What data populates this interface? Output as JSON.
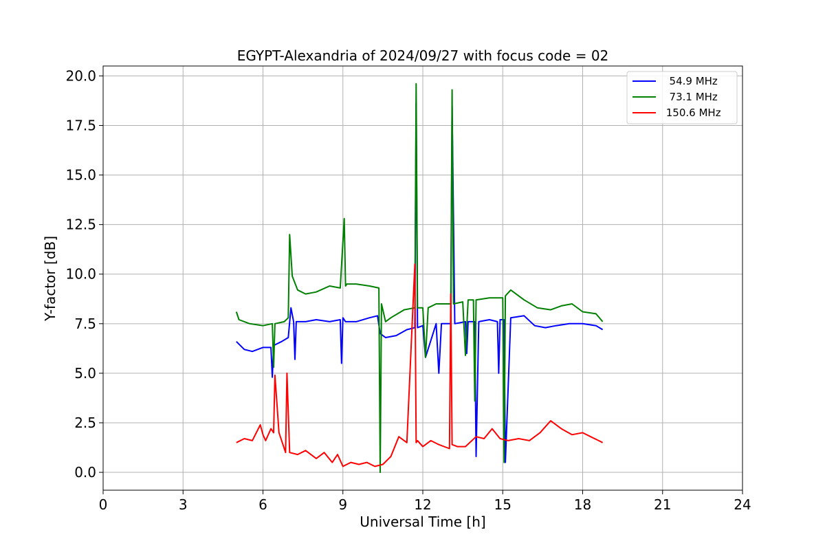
{
  "chart_data": {
    "type": "line",
    "title": "EGYPT-Alexandria of 2024/09/27 with focus code = 02",
    "xlabel": "Universal Time [h]",
    "ylabel": "Y-factor [dB]",
    "xlim": [
      0,
      24
    ],
    "ylim": [
      -0.9,
      20.5
    ],
    "x_ticks": [
      0,
      3,
      6,
      9,
      12,
      15,
      18,
      21,
      24
    ],
    "x_tick_labels": [
      "0",
      "3",
      "6",
      "9",
      "12",
      "15",
      "18",
      "21",
      "24"
    ],
    "y_ticks": [
      0.0,
      2.5,
      5.0,
      7.5,
      10.0,
      12.5,
      15.0,
      17.5,
      20.0
    ],
    "y_tick_labels": [
      "0.0",
      "2.5",
      "5.0",
      "7.5",
      "10.0",
      "12.5",
      "15.0",
      "17.5",
      "20.0"
    ],
    "grid": true,
    "legend_position": "top-right",
    "series": [
      {
        "name": "  54.9 MHz",
        "color": "#0000ff",
        "x": [
          5.0,
          5.3,
          5.6,
          6.0,
          6.3,
          6.35,
          6.4,
          6.7,
          6.95,
          7.05,
          7.15,
          7.2,
          7.25,
          7.6,
          8.0,
          8.5,
          8.9,
          8.95,
          9.0,
          9.1,
          9.5,
          10.0,
          10.3,
          10.4,
          10.6,
          11.0,
          11.4,
          11.7,
          11.75,
          11.8,
          12.0,
          12.1,
          12.5,
          12.6,
          12.7,
          13.05,
          13.1,
          13.2,
          13.6,
          13.65,
          13.7,
          13.95,
          14.0,
          14.1,
          14.5,
          14.8,
          14.85,
          14.9,
          15.05,
          15.1,
          15.3,
          15.8,
          16.2,
          16.6,
          17.0,
          17.5,
          18.0,
          18.5,
          18.75
        ],
        "y": [
          6.6,
          6.2,
          6.1,
          6.3,
          6.3,
          4.8,
          6.4,
          6.6,
          6.8,
          8.3,
          7.6,
          5.7,
          7.6,
          7.6,
          7.7,
          7.6,
          7.7,
          5.5,
          7.8,
          7.6,
          7.6,
          7.8,
          7.9,
          7.0,
          6.8,
          6.9,
          7.2,
          7.3,
          18.6,
          7.3,
          7.4,
          5.8,
          7.5,
          5.0,
          7.5,
          7.5,
          18.5,
          7.5,
          7.6,
          6.0,
          7.6,
          7.6,
          0.8,
          7.6,
          7.7,
          7.6,
          5.0,
          7.7,
          7.7,
          0.5,
          7.8,
          7.9,
          7.4,
          7.3,
          7.4,
          7.5,
          7.5,
          7.4,
          7.2
        ]
      },
      {
        "name": "  73.1 MHz",
        "color": "#008000",
        "x": [
          5.0,
          5.1,
          5.5,
          6.0,
          6.35,
          6.4,
          6.45,
          6.8,
          6.95,
          7.0,
          7.1,
          7.3,
          7.6,
          8.0,
          8.5,
          8.9,
          9.05,
          9.1,
          9.15,
          9.5,
          10.0,
          10.35,
          10.4,
          10.45,
          10.6,
          10.8,
          11.3,
          11.7,
          11.75,
          11.8,
          12.0,
          12.1,
          12.2,
          12.5,
          13.05,
          13.1,
          13.15,
          13.5,
          13.6,
          13.7,
          13.9,
          13.95,
          14.0,
          14.5,
          15.0,
          15.05,
          15.1,
          15.3,
          15.8,
          16.3,
          16.8,
          17.2,
          17.6,
          18.0,
          18.5,
          18.75
        ],
        "y": [
          8.1,
          7.7,
          7.5,
          7.4,
          7.5,
          5.3,
          7.5,
          7.6,
          7.8,
          12.0,
          9.9,
          9.2,
          9.0,
          9.1,
          9.4,
          9.3,
          12.8,
          9.4,
          9.5,
          9.5,
          9.4,
          9.3,
          0.0,
          8.5,
          7.6,
          7.8,
          8.2,
          8.3,
          19.6,
          8.3,
          8.3,
          5.8,
          8.3,
          8.5,
          8.5,
          19.3,
          8.5,
          8.6,
          5.9,
          8.7,
          8.7,
          3.6,
          8.7,
          8.8,
          8.8,
          0.5,
          8.9,
          9.2,
          8.7,
          8.3,
          8.2,
          8.4,
          8.5,
          8.1,
          8.0,
          7.6
        ]
      },
      {
        "name": " 150.6 MHz",
        "color": "#ff0000",
        "x": [
          5.0,
          5.3,
          5.6,
          5.9,
          6.0,
          6.1,
          6.3,
          6.4,
          6.45,
          6.6,
          6.85,
          6.9,
          7.0,
          7.3,
          7.6,
          8.0,
          8.3,
          8.6,
          8.8,
          9.0,
          9.3,
          9.6,
          9.9,
          10.2,
          10.5,
          10.8,
          11.1,
          11.4,
          11.7,
          11.75,
          11.8,
          12.0,
          12.3,
          12.6,
          13.0,
          13.05,
          13.1,
          13.3,
          13.6,
          14.0,
          14.3,
          14.6,
          14.9,
          15.2,
          15.6,
          16.0,
          16.4,
          16.8,
          17.2,
          17.6,
          18.0,
          18.3,
          18.6,
          18.75
        ],
        "y": [
          1.5,
          1.7,
          1.6,
          2.4,
          1.9,
          1.6,
          2.2,
          2.0,
          4.9,
          2.0,
          1.0,
          5.0,
          1.0,
          0.9,
          1.1,
          0.7,
          1.0,
          0.5,
          0.9,
          0.3,
          0.5,
          0.4,
          0.5,
          0.3,
          0.4,
          0.8,
          1.8,
          1.5,
          10.5,
          1.5,
          1.6,
          1.3,
          1.6,
          1.4,
          1.2,
          9.0,
          1.4,
          1.3,
          1.3,
          1.8,
          1.7,
          2.2,
          1.7,
          1.6,
          1.7,
          1.6,
          2.0,
          2.6,
          2.2,
          1.9,
          2.0,
          1.8,
          1.6,
          1.5
        ]
      }
    ]
  }
}
